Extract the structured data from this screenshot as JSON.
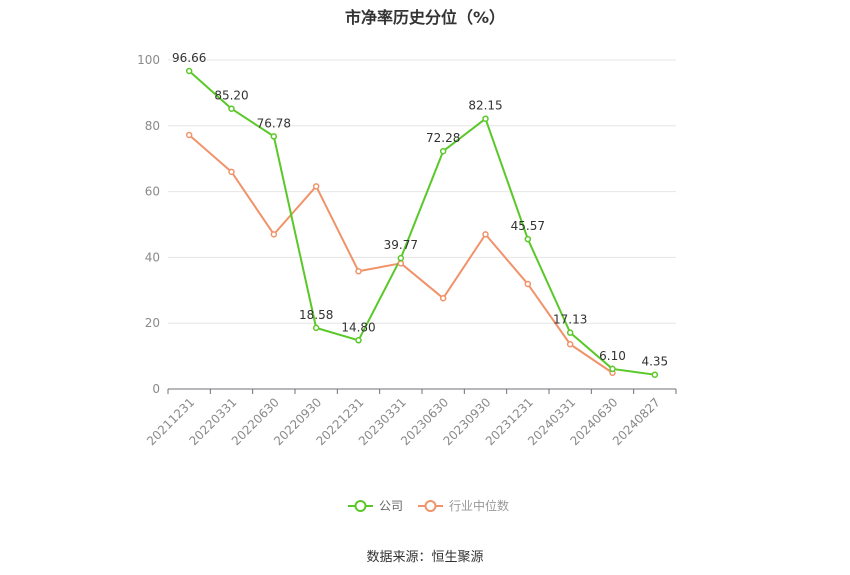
{
  "chart_data": {
    "type": "line",
    "title": "市净率历史分位（%）",
    "categories": [
      "20211231",
      "20220331",
      "20220630",
      "20220930",
      "20221231",
      "20230331",
      "20230630",
      "20230930",
      "20231231",
      "20240331",
      "20240630",
      "20240827"
    ],
    "ylim": [
      0,
      100
    ],
    "yticks": [
      0,
      20,
      40,
      60,
      80,
      100
    ],
    "grid": true,
    "legend_position": "bottom",
    "series": [
      {
        "name": "公司",
        "color": "#5ac828",
        "values": [
          96.66,
          85.2,
          76.78,
          18.58,
          14.8,
          39.77,
          72.28,
          82.15,
          45.57,
          17.13,
          6.1,
          4.35
        ],
        "labels": [
          "96.66",
          "85.20",
          "76.78",
          "18.58",
          "14.80",
          "39.77",
          "72.28",
          "82.15",
          "45.57",
          "17.13",
          "6.10",
          "4.35"
        ]
      },
      {
        "name": "行业中位数",
        "color": "#f0936a",
        "values": [
          77.2,
          66.0,
          47.0,
          61.6,
          35.8,
          38.2,
          27.6,
          47.0,
          31.9,
          13.6,
          4.9,
          null
        ]
      }
    ]
  },
  "footer": {
    "source": "数据来源：恒生聚源"
  }
}
